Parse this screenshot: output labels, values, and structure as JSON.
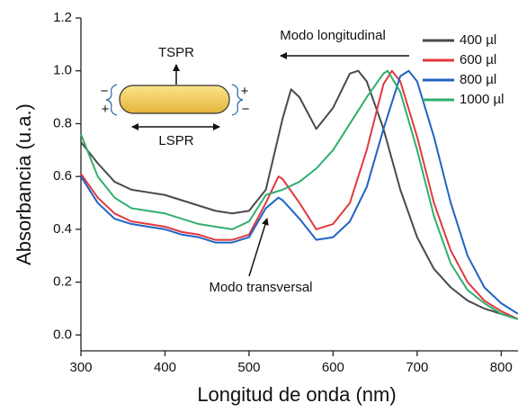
{
  "chart_data": {
    "type": "line",
    "x_label": "Longitud de onda (nm)",
    "y_label": "Absorbancia (u.a.)",
    "xlim": [
      300,
      820
    ],
    "ylim": [
      -0.06,
      1.2
    ],
    "xticks": [
      300,
      400,
      500,
      600,
      700,
      800
    ],
    "yticks": [
      {
        "value": 0,
        "label": "0.0"
      },
      0.2,
      0.4,
      0.6,
      0.8,
      {
        "value": 1,
        "label": "1.0"
      },
      1.2
    ],
    "legend": "upper right",
    "series": [
      {
        "name": "400 µl",
        "color": "#4a4a4a",
        "x": [
          300,
          320,
          340,
          360,
          380,
          400,
          420,
          440,
          460,
          480,
          500,
          520,
          540,
          550,
          560,
          580,
          600,
          620,
          630,
          640,
          660,
          680,
          700,
          720,
          740,
          760,
          780,
          800,
          820
        ],
        "values": [
          0.73,
          0.65,
          0.58,
          0.55,
          0.54,
          0.53,
          0.51,
          0.49,
          0.47,
          0.46,
          0.47,
          0.55,
          0.82,
          0.93,
          0.9,
          0.78,
          0.86,
          0.99,
          1.0,
          0.96,
          0.78,
          0.55,
          0.37,
          0.25,
          0.18,
          0.13,
          0.1,
          0.08,
          0.06
        ]
      },
      {
        "name": "600 µl",
        "color": "#e0393e",
        "x": [
          300,
          320,
          340,
          360,
          380,
          400,
          420,
          440,
          460,
          480,
          500,
          520,
          535,
          540,
          560,
          580,
          600,
          620,
          640,
          660,
          670,
          680,
          700,
          720,
          740,
          760,
          780,
          800,
          820
        ],
        "values": [
          0.61,
          0.52,
          0.46,
          0.43,
          0.42,
          0.41,
          0.39,
          0.38,
          0.36,
          0.36,
          0.38,
          0.5,
          0.6,
          0.59,
          0.5,
          0.4,
          0.42,
          0.5,
          0.7,
          0.95,
          1.0,
          0.96,
          0.75,
          0.5,
          0.32,
          0.2,
          0.13,
          0.09,
          0.06
        ]
      },
      {
        "name": "800 µl",
        "color": "#1f63c4",
        "x": [
          300,
          320,
          340,
          360,
          380,
          400,
          420,
          440,
          460,
          480,
          500,
          520,
          535,
          540,
          560,
          580,
          600,
          620,
          640,
          660,
          680,
          690,
          700,
          720,
          740,
          760,
          780,
          800,
          820
        ],
        "values": [
          0.6,
          0.5,
          0.44,
          0.42,
          0.41,
          0.4,
          0.38,
          0.37,
          0.35,
          0.35,
          0.37,
          0.48,
          0.52,
          0.51,
          0.44,
          0.36,
          0.37,
          0.43,
          0.56,
          0.78,
          0.98,
          1.0,
          0.96,
          0.75,
          0.5,
          0.3,
          0.18,
          0.12,
          0.08
        ]
      },
      {
        "name": "1000 µl",
        "color": "#2fae6e",
        "x": [
          300,
          320,
          340,
          360,
          380,
          400,
          420,
          440,
          460,
          480,
          500,
          520,
          540,
          560,
          580,
          600,
          620,
          640,
          660,
          665,
          680,
          700,
          720,
          740,
          760,
          780,
          800,
          820
        ],
        "values": [
          0.76,
          0.6,
          0.52,
          0.48,
          0.47,
          0.46,
          0.44,
          0.42,
          0.41,
          0.4,
          0.43,
          0.53,
          0.55,
          0.58,
          0.63,
          0.7,
          0.8,
          0.9,
          0.99,
          1.0,
          0.92,
          0.7,
          0.45,
          0.27,
          0.17,
          0.12,
          0.08,
          0.06
        ]
      }
    ],
    "annotations": {
      "longitudinal": "Modo longitudinal",
      "transversal": "Modo transversal",
      "tspr": "TSPR",
      "lspr": "LSPR",
      "signs": [
        "−",
        "+",
        "+",
        "−"
      ]
    }
  }
}
